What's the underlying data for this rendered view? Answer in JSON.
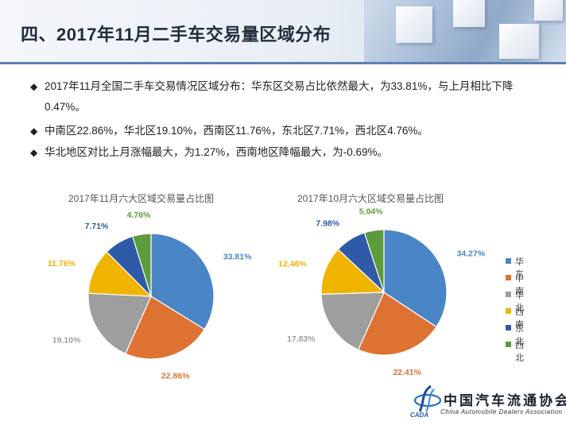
{
  "header": {
    "title": "四、2017年11月二手车交易量区域分布"
  },
  "bullets": [
    {
      "mark": "◆",
      "text": "2017年11月全国二手车交易情况区域分布：华东区交易占比依然最大，为33.81%，与上月相比下降0.47%。"
    },
    {
      "mark": "◆",
      "text": "中南区22.86%，华北区19.10%，西南区11.76%，东北区7.71%，西北区4.76%。"
    },
    {
      "mark": "◆",
      "text": "华北地区对比上月涨幅最大，为1.27%，西南地区降幅最大，为-0.69%。"
    }
  ],
  "chart_data": [
    {
      "type": "pie",
      "title": "2017年11月六大区域交易量占比图",
      "categories": [
        "华东",
        "中南",
        "华北",
        "西南",
        "东北",
        "西北"
      ],
      "values": [
        33.81,
        22.86,
        19.1,
        11.76,
        7.71,
        4.76
      ],
      "labels": [
        "33.81%",
        "22.86%",
        "19.10%",
        "11.76%",
        "7.71%",
        "4.76%"
      ],
      "colors": [
        "#4a86c5",
        "#dd7232",
        "#9e9e9e",
        "#f0b400",
        "#2f5aa7",
        "#5c9b3c"
      ]
    },
    {
      "type": "pie",
      "title": "2017年10月六大区域交易量占比图",
      "categories": [
        "华东",
        "中南",
        "华北",
        "西南",
        "东北",
        "西北"
      ],
      "values": [
        34.27,
        22.41,
        17.83,
        12.46,
        7.98,
        5.04
      ],
      "labels": [
        "34.27%",
        "22.41%",
        "17.83%",
        "12.46%",
        "7.98%",
        "5.04%"
      ],
      "colors": [
        "#4a86c5",
        "#dd7232",
        "#9e9e9e",
        "#f0b400",
        "#2f5aa7",
        "#5c9b3c"
      ],
      "legend_position": "right"
    }
  ],
  "legend": [
    "华东",
    "中南",
    "华北",
    "西南",
    "东北",
    "西北"
  ],
  "logo": {
    "name_cn": "中国汽车流通协会",
    "abbr": "CADA",
    "name_en": "China Automobile Dealers Association"
  }
}
